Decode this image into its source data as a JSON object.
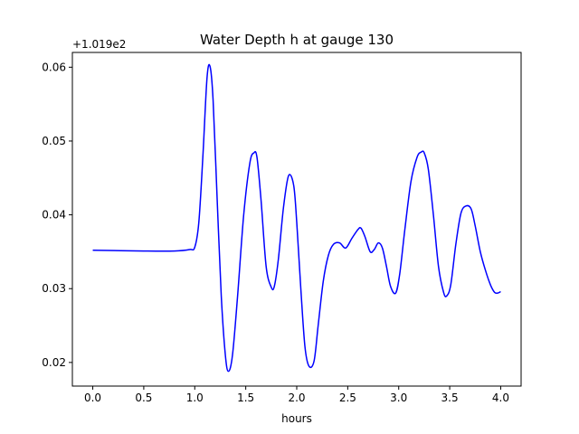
{
  "chart_data": {
    "type": "line",
    "title": "Water Depth h at gauge 130",
    "xlabel": "hours",
    "ylabel": "",
    "y_offset_label": "+1.019e2",
    "xlim": [
      -0.2,
      4.2
    ],
    "ylim": [
      0.0168,
      0.062
    ],
    "x_ticks": [
      0.0,
      0.5,
      1.0,
      1.5,
      2.0,
      2.5,
      3.0,
      3.5,
      4.0
    ],
    "x_tick_labels": [
      "0.0",
      "0.5",
      "1.0",
      "1.5",
      "2.0",
      "2.5",
      "3.0",
      "3.5",
      "4.0"
    ],
    "y_ticks": [
      0.02,
      0.03,
      0.04,
      0.05,
      0.06
    ],
    "y_tick_labels": [
      "0.02",
      "0.03",
      "0.04",
      "0.05",
      "0.06"
    ],
    "grid": false,
    "series": [
      {
        "color": "#0000ff",
        "x": [
          0.0,
          0.5,
          0.8,
          0.95,
          1.0,
          1.04,
          1.08,
          1.12,
          1.15,
          1.18,
          1.22,
          1.26,
          1.3,
          1.33,
          1.37,
          1.42,
          1.48,
          1.54,
          1.58,
          1.61,
          1.65,
          1.7,
          1.75,
          1.78,
          1.82,
          1.87,
          1.92,
          1.97,
          2.0,
          2.04,
          2.08,
          2.12,
          2.17,
          2.21,
          2.26,
          2.31,
          2.36,
          2.42,
          2.48,
          2.54,
          2.6,
          2.63,
          2.67,
          2.72,
          2.76,
          2.8,
          2.84,
          2.88,
          2.92,
          2.97,
          3.01,
          3.06,
          3.12,
          3.18,
          3.22,
          3.25,
          3.29,
          3.34,
          3.39,
          3.44,
          3.47,
          3.51,
          3.56,
          3.61,
          3.66,
          3.71,
          3.75,
          3.8,
          3.85,
          3.9,
          3.94,
          3.97,
          4.0
        ],
        "y": [
          0.0352,
          0.0351,
          0.0351,
          0.0353,
          0.0356,
          0.039,
          0.048,
          0.0585,
          0.0601,
          0.0555,
          0.042,
          0.029,
          0.021,
          0.0188,
          0.021,
          0.029,
          0.04,
          0.047,
          0.0484,
          0.0478,
          0.042,
          0.033,
          0.0302,
          0.0303,
          0.034,
          0.041,
          0.0453,
          0.044,
          0.039,
          0.03,
          0.0222,
          0.0195,
          0.0202,
          0.025,
          0.031,
          0.0345,
          0.036,
          0.0362,
          0.0355,
          0.0368,
          0.038,
          0.0382,
          0.037,
          0.035,
          0.0353,
          0.0362,
          0.0355,
          0.033,
          0.0303,
          0.0294,
          0.032,
          0.038,
          0.0445,
          0.0478,
          0.0485,
          0.0484,
          0.0462,
          0.04,
          0.033,
          0.0295,
          0.029,
          0.0305,
          0.036,
          0.0402,
          0.0412,
          0.0408,
          0.0385,
          0.035,
          0.0325,
          0.0305,
          0.0295,
          0.0294,
          0.0296
        ]
      }
    ]
  }
}
